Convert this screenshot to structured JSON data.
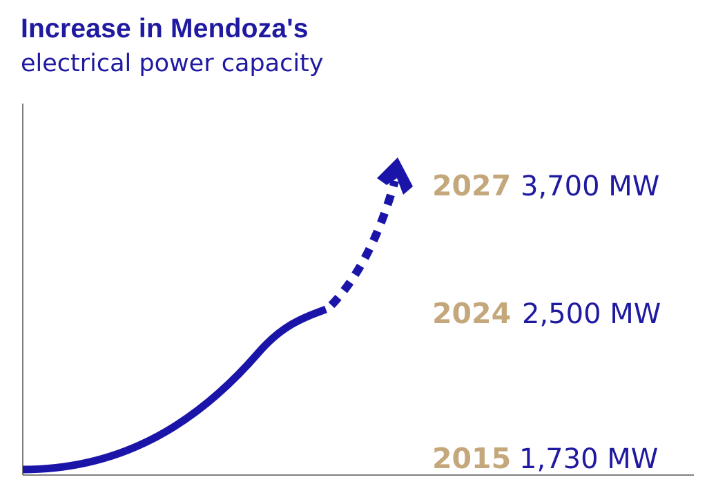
{
  "title": "Increase in Mendoza's",
  "subtitle": "electrical power capacity",
  "colors": {
    "line": "#1a14a8",
    "year": "#c4a87c",
    "value": "#1f1aa0",
    "axis": "#555555"
  },
  "chart_data": {
    "type": "line",
    "title": "Increase in Mendoza's electrical power capacity",
    "unit": "MW",
    "points": [
      {
        "year": "2015",
        "value": 1730,
        "label": "1,730 MW",
        "segment": "actual"
      },
      {
        "year": "2024",
        "value": 2500,
        "label": "2,500 MW",
        "segment": "actual"
      },
      {
        "year": "2027",
        "value": 3700,
        "label": "3,700 MW",
        "segment": "projected"
      }
    ],
    "grid": false,
    "legend": "none"
  }
}
